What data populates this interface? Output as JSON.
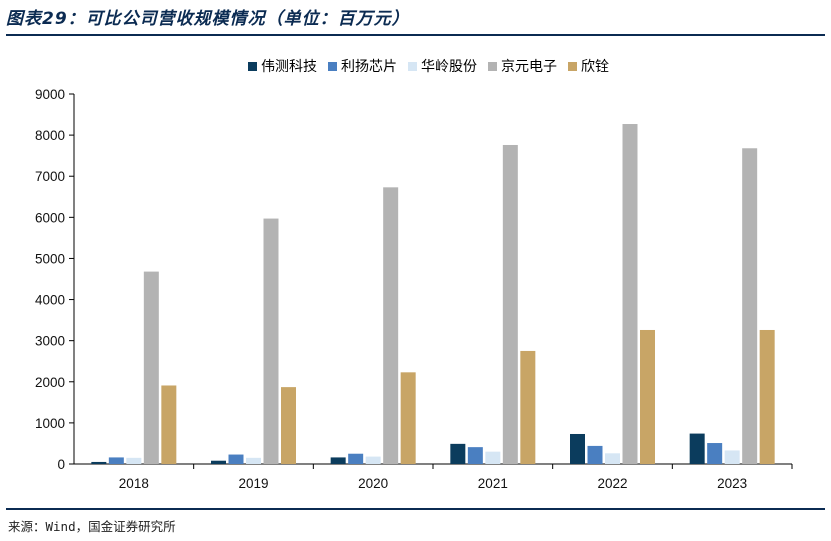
{
  "header": {
    "title": "图表29：可比公司营收规模情况（单位：百万元）"
  },
  "footer": {
    "source": "来源：Wind，国金证券研究所"
  },
  "colors": {
    "series": [
      "#0b3c5d",
      "#4a7fc1",
      "#d6e6f4",
      "#b3b3b3",
      "#c8a566"
    ],
    "axis": "#000000",
    "rule": "#0b2b52"
  },
  "chart_data": {
    "type": "bar",
    "title": "",
    "xlabel": "",
    "ylabel": "",
    "categories": [
      "2018",
      "2019",
      "2020",
      "2021",
      "2022",
      "2023"
    ],
    "ylim": [
      0,
      9000
    ],
    "yticks": [
      0,
      1000,
      2000,
      3000,
      4000,
      5000,
      6000,
      7000,
      8000,
      9000
    ],
    "grid": false,
    "legend_position": "top",
    "series": [
      {
        "name": "伟测科技",
        "values": [
          50,
          80,
          160,
          490,
          730,
          740
        ]
      },
      {
        "name": "利扬芯片",
        "values": [
          160,
          230,
          250,
          410,
          440,
          510
        ]
      },
      {
        "name": "华岭股份",
        "values": [
          150,
          150,
          180,
          300,
          260,
          330
        ]
      },
      {
        "name": "京元电子",
        "values": [
          4680,
          5970,
          6730,
          7760,
          8270,
          7680
        ]
      },
      {
        "name": "欣铨",
        "values": [
          1910,
          1870,
          2230,
          2750,
          3260,
          3260
        ]
      }
    ]
  }
}
